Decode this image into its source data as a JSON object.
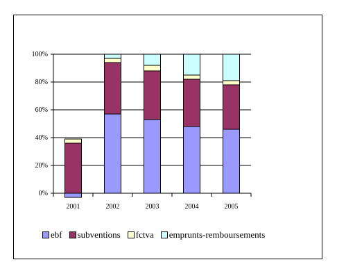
{
  "chart_data": {
    "type": "bar",
    "stacked": true,
    "percent": true,
    "categories": [
      "2001",
      "2002",
      "2003",
      "2004",
      "2005"
    ],
    "series": [
      {
        "name": "ebf",
        "color": "#9999ff",
        "values": [
          -3,
          57,
          53,
          48,
          46
        ]
      },
      {
        "name": "subventions",
        "color": "#993366",
        "values": [
          36,
          37,
          35,
          34,
          32
        ]
      },
      {
        "name": "fctva",
        "color": "#ffffcc",
        "values": [
          3,
          3,
          4,
          3,
          3
        ]
      },
      {
        "name": "emprunts-remboursements",
        "color": "#ccffff",
        "values": [
          0,
          3,
          8,
          15,
          19
        ]
      }
    ],
    "y_ticks": [
      "0%",
      "20%",
      "40%",
      "60%",
      "80%",
      "100%"
    ],
    "ylim": [
      0,
      100
    ],
    "grid": true,
    "legend_position": "bottom"
  }
}
